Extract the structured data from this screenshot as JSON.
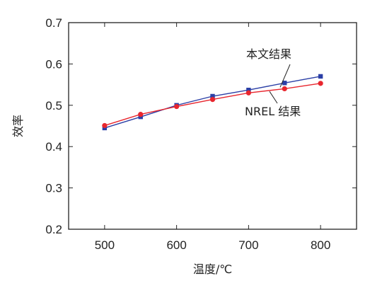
{
  "chart_data": {
    "type": "line",
    "xlabel": "温度/℃",
    "ylabel": "效率",
    "xlim": [
      450,
      850
    ],
    "ylim": [
      0.2,
      0.7
    ],
    "x_ticks": [
      500,
      600,
      700,
      800
    ],
    "y_ticks": [
      0.2,
      0.3,
      0.4,
      0.5,
      0.6,
      0.7
    ],
    "x_tick_labels": [
      "500",
      "600",
      "700",
      "800"
    ],
    "y_tick_labels": [
      "0.2",
      "0.3",
      "0.4",
      "0.5",
      "0.6",
      "0.7"
    ],
    "grid": false,
    "legend": "none",
    "x": [
      500,
      550,
      600,
      650,
      700,
      750,
      800
    ],
    "series": [
      {
        "name": "本文结果",
        "color": "#2b3fa6",
        "marker": "square",
        "values": [
          0.445,
          0.472,
          0.5,
          0.522,
          0.537,
          0.554,
          0.57
        ]
      },
      {
        "name": "NREL 结果",
        "color": "#e8262e",
        "marker": "circle",
        "values": [
          0.451,
          0.478,
          0.497,
          0.514,
          0.53,
          0.54,
          0.553
        ]
      }
    ],
    "annotations": [
      {
        "text": "本文结果",
        "series_index": 0
      },
      {
        "text": "NREL 结果",
        "series_index": 1
      }
    ]
  }
}
